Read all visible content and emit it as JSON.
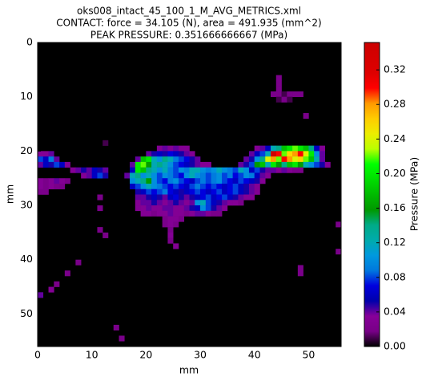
{
  "chart_data": {
    "type": "heatmap",
    "title": "oks008_intact_45_100_1_M_AVG_METRICS.xml",
    "subtitle": "CONTACT: force = 34.105 (N), area = 491.935 (mm^2)",
    "annotation": "PEAK PRESSURE: 0.351666666667 (MPa)",
    "x_label": "mm",
    "y_label": "mm",
    "colorbar_label": "Pressure (MPa)",
    "colormap": "nipy_spectral",
    "xlim": [
      0,
      56
    ],
    "ylim": [
      56,
      0
    ],
    "clim": [
      0,
      0.351666666667
    ],
    "xticks": [
      0,
      10,
      20,
      30,
      40,
      50
    ],
    "yticks": [
      0,
      10,
      20,
      30,
      40,
      50
    ],
    "cticks": [
      {
        "value": 0,
        "label": "0.00"
      },
      {
        "value": 0.04,
        "label": "0.04"
      },
      {
        "value": 0.08,
        "label": "0.08"
      },
      {
        "value": 0.12,
        "label": "0.12"
      },
      {
        "value": 0.16,
        "label": "0.16"
      },
      {
        "value": 0.2,
        "label": "0.20"
      },
      {
        "value": 0.24,
        "label": "0.24"
      },
      {
        "value": 0.28,
        "label": "0.28"
      },
      {
        "value": 0.32,
        "label": "0.32"
      }
    ],
    "rows": [
      {
        "y": 6,
        "x0": 44,
        "values": [
          0.02
        ]
      },
      {
        "y": 7,
        "x0": 44,
        "values": [
          0.02
        ]
      },
      {
        "y": 8,
        "x0": 44,
        "values": [
          0.02
        ]
      },
      {
        "y": 9,
        "x0": 43,
        "values": [
          0.02,
          0.02,
          0.01,
          0.02,
          0.02,
          0.02
        ]
      },
      {
        "y": 10,
        "x0": 44,
        "values": [
          0.01,
          0.02,
          0.01
        ]
      },
      {
        "y": 13,
        "x0": 49,
        "values": [
          0.02
        ]
      },
      {
        "y": 18,
        "x0": 12,
        "values": [
          0.01
        ]
      },
      {
        "y": 19,
        "x0": 22,
        "values": [
          0.03,
          0.04,
          0.03,
          0.04,
          0.03,
          0.03
        ]
      },
      {
        "y": 19,
        "x0": 40,
        "values": [
          0.03,
          0.04,
          0.06,
          0.12,
          0.14,
          0.18,
          0.2,
          0.22,
          0.2,
          0.18,
          0.14,
          0.06,
          0.03
        ]
      },
      {
        "y": 20,
        "x0": 0,
        "values": [
          0.03,
          0.03,
          0.04
        ]
      },
      {
        "y": 20,
        "x0": 20,
        "values": [
          0.04,
          0.05,
          0.06,
          0.05,
          0.07,
          0.06,
          0.05,
          0.04,
          0.03
        ]
      },
      {
        "y": 20,
        "x0": 39,
        "values": [
          0.04,
          0.06,
          0.08,
          0.12,
          0.35,
          0.3,
          0.22,
          0.26,
          0.28,
          0.3,
          0.24,
          0.2,
          0.1,
          0.04
        ]
      },
      {
        "y": 21,
        "x0": 0,
        "values": [
          0.08,
          0.06,
          0.09,
          0.04
        ]
      },
      {
        "y": 21,
        "x0": 18,
        "values": [
          0.04,
          0.18,
          0.2,
          0.12,
          0.1,
          0.14,
          0.12,
          0.09,
          0.08,
          0.07,
          0.05,
          0.04
        ]
      },
      {
        "y": 21,
        "x0": 38,
        "values": [
          0.04,
          0.05,
          0.1,
          0.14,
          0.24,
          0.28,
          0.22,
          0.3,
          0.28,
          0.24,
          0.26,
          0.22,
          0.18,
          0.12,
          0.04
        ]
      },
      {
        "y": 22,
        "x0": 0,
        "values": [
          0.04,
          0.06,
          0.05,
          0.08,
          0.06,
          0.03
        ]
      },
      {
        "y": 22,
        "x0": 17,
        "values": [
          0.04,
          0.2,
          0.22,
          0.16,
          0.12,
          0.14,
          0.12,
          0.1,
          0.08,
          0.07,
          0.06,
          0.05,
          0.04,
          0.03,
          0.03
        ]
      },
      {
        "y": 22,
        "x0": 37,
        "values": [
          0.04,
          0.05,
          0.08,
          0.16,
          0.18,
          0.12,
          0.2,
          0.16,
          0.14,
          0.18,
          0.2,
          0.16,
          0.12,
          0.1,
          0.08,
          0.05,
          0.03
        ]
      },
      {
        "y": 23,
        "x0": 6,
        "values": [
          0.03,
          0.04,
          0.05,
          0.04,
          0.06,
          0.05,
          0.04
        ]
      },
      {
        "y": 23,
        "x0": 17,
        "values": [
          0.06,
          0.2,
          0.18,
          0.14,
          0.12,
          0.1,
          0.12,
          0.09,
          0.08,
          0.1,
          0.09,
          0.12,
          0.12,
          0.1,
          0.09,
          0.1,
          0.12,
          0.1,
          0.09,
          0.08,
          0.12,
          0.1,
          0.06,
          0.08,
          0.05,
          0.04
        ]
      },
      {
        "y": 23,
        "x0": 43,
        "values": [
          0.04,
          0.03,
          0.04,
          0.03,
          0.02,
          0.02
        ]
      },
      {
        "y": 24,
        "x0": 8,
        "values": [
          0.03,
          0.04,
          0.06,
          0.08,
          0.05
        ]
      },
      {
        "y": 24,
        "x0": 16,
        "values": [
          0.04,
          0.12,
          0.14,
          0.1,
          0.12,
          0.1,
          0.08,
          0.1,
          0.09,
          0.08,
          0.07,
          0.1,
          0.12,
          0.1,
          0.09,
          0.08,
          0.09,
          0.1,
          0.08,
          0.09,
          0.07,
          0.08,
          0.1,
          0.09,
          0.06,
          0.04,
          0.03
        ]
      },
      {
        "y": 25,
        "x0": 0,
        "values": [
          0.03,
          0.02,
          0.03,
          0.04,
          0.03,
          0.02
        ]
      },
      {
        "y": 25,
        "x0": 17,
        "values": [
          0.1,
          0.12,
          0.14,
          0.16,
          0.1,
          0.08,
          0.07,
          0.09,
          0.1,
          0.08,
          0.07,
          0.06,
          0.08,
          0.09,
          0.08,
          0.09,
          0.1,
          0.08,
          0.07,
          0.06,
          0.08,
          0.07,
          0.06,
          0.05,
          0.03
        ]
      },
      {
        "y": 26,
        "x0": 0,
        "values": [
          0.03,
          0.02,
          0.03,
          0.02,
          0.02
        ]
      },
      {
        "y": 26,
        "x0": 17,
        "values": [
          0.06,
          0.08,
          0.1,
          0.12,
          0.1,
          0.09,
          0.08,
          0.07,
          0.08,
          0.07,
          0.06,
          0.08,
          0.09,
          0.08,
          0.07,
          0.08,
          0.07,
          0.06,
          0.07,
          0.08,
          0.06,
          0.05,
          0.04,
          0.03
        ]
      },
      {
        "y": 27,
        "x0": 0,
        "values": [
          0.02,
          0.02
        ]
      },
      {
        "y": 27,
        "x0": 18,
        "values": [
          0.05,
          0.06,
          0.08,
          0.07,
          0.08,
          0.09,
          0.07,
          0.06,
          0.05,
          0.06,
          0.07,
          0.08,
          0.07,
          0.06,
          0.07,
          0.08,
          0.06,
          0.07,
          0.08,
          0.06,
          0.05,
          0.04,
          0.03
        ]
      },
      {
        "y": 28,
        "x0": 11,
        "values": [
          0.02
        ]
      },
      {
        "y": 28,
        "x0": 18,
        "values": [
          0.04,
          0.04,
          0.05,
          0.06,
          0.05,
          0.04,
          0.06,
          0.07,
          0.05,
          0.04,
          0.05,
          0.06,
          0.07,
          0.08,
          0.06,
          0.07,
          0.08,
          0.06,
          0.05,
          0.04,
          0.03,
          0.03
        ]
      },
      {
        "y": 29,
        "x0": 18,
        "values": [
          0.03,
          0.04,
          0.04,
          0.05,
          0.04,
          0.03,
          0.04,
          0.05,
          0.04,
          0.03,
          0.04,
          0.1,
          0.12,
          0.08,
          0.06,
          0.05,
          0.04,
          0.03,
          0.03,
          0.02
        ]
      },
      {
        "y": 30,
        "x0": 11,
        "values": [
          0.02
        ]
      },
      {
        "y": 30,
        "x0": 18,
        "values": [
          0.03,
          0.03,
          0.04,
          0.03,
          0.03,
          0.04,
          0.04,
          0.03,
          0.03,
          0.04,
          0.05,
          0.06,
          0.1,
          0.08,
          0.05,
          0.04,
          0.03
        ]
      },
      {
        "y": 31,
        "x0": 19,
        "values": [
          0.03,
          0.03,
          0.02,
          0.03,
          0.03,
          0.04,
          0.03,
          0.03,
          0.02,
          0.03,
          0.04,
          0.04,
          0.03,
          0.02,
          0.02
        ]
      },
      {
        "y": 32,
        "x0": 23,
        "values": [
          0.02,
          0.03,
          0.03,
          0.02
        ]
      },
      {
        "y": 33,
        "x0": 23,
        "values": [
          0.02,
          0.03,
          0.02
        ]
      },
      {
        "y": 33,
        "x0": 55,
        "values": [
          0.02
        ]
      },
      {
        "y": 34,
        "x0": 11,
        "values": [
          0.02
        ]
      },
      {
        "y": 34,
        "x0": 24,
        "values": [
          0.02
        ]
      },
      {
        "y": 35,
        "x0": 12,
        "values": [
          0.02
        ]
      },
      {
        "y": 35,
        "x0": 24,
        "values": [
          0.03
        ]
      },
      {
        "y": 36,
        "x0": 24,
        "values": [
          0.02
        ]
      },
      {
        "y": 37,
        "x0": 25,
        "values": [
          0.03
        ]
      },
      {
        "y": 38,
        "x0": 55,
        "values": [
          0.02
        ]
      },
      {
        "y": 40,
        "x0": 7,
        "values": [
          0.02
        ]
      },
      {
        "y": 41,
        "x0": 48,
        "values": [
          0.02
        ]
      },
      {
        "y": 42,
        "x0": 5,
        "values": [
          0.02
        ]
      },
      {
        "y": 42,
        "x0": 48,
        "values": [
          0.02
        ]
      },
      {
        "y": 44,
        "x0": 3,
        "values": [
          0.02
        ]
      },
      {
        "y": 45,
        "x0": 2,
        "values": [
          0.03
        ]
      },
      {
        "y": 46,
        "x0": 0,
        "values": [
          0.04
        ]
      },
      {
        "y": 52,
        "x0": 14,
        "values": [
          0.02
        ]
      },
      {
        "y": 54,
        "x0": 15,
        "values": [
          0.02
        ]
      }
    ]
  }
}
